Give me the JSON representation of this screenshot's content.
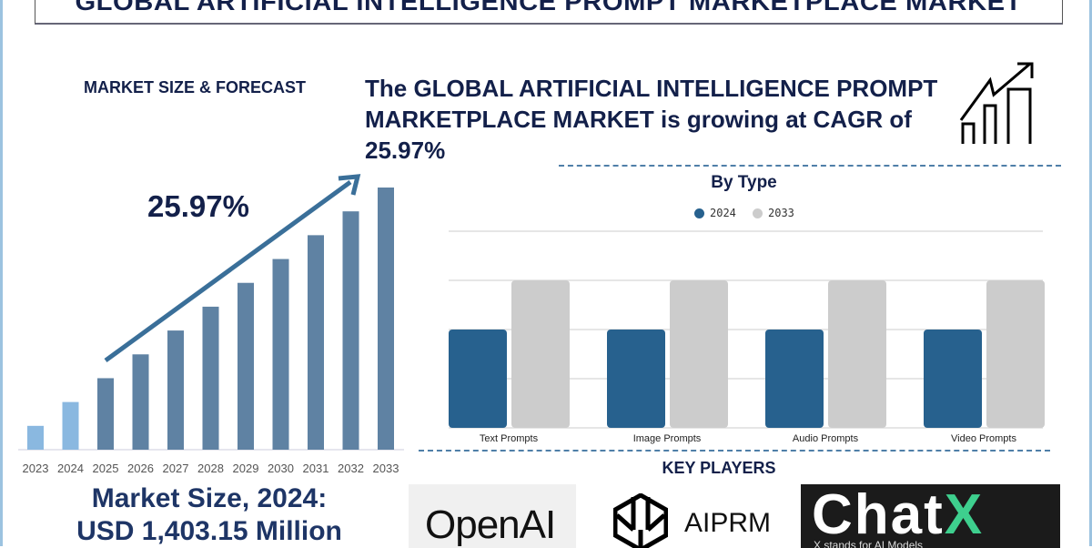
{
  "header": {
    "title": "GLOBAL ARTIFICIAL INTELLIGENCE PROMPT MARKETPLACE MARKET"
  },
  "section_label": "MARKET SIZE & FORECAST",
  "headline": "The GLOBAL ARTIFICIAL INTELLIGENCE PROMPT MARKETPLACE MARKET is growing at CAGR of 25.97%",
  "cagr_label": "25.97%",
  "market_size": {
    "line1": "Market Size, 2024:",
    "line2": "USD 1,403.15 Million"
  },
  "key_players": {
    "title": "KEY PLAYERS",
    "logos": [
      "OpenAI",
      "AIPRM",
      "ChatX",
      "X stands for AI Models"
    ]
  },
  "colors": {
    "navy": "#13204a",
    "forecast_bar": "#5f82a3",
    "historic_bar": "#8ab8e0",
    "series_2024": "#27618e",
    "series_2033": "#cccccc",
    "arrow": "#3a6f99"
  },
  "chart_data": [
    {
      "type": "bar",
      "title": "",
      "categories": [
        "2023",
        "2024",
        "2025",
        "2026",
        "2027",
        "2028",
        "2029",
        "2030",
        "2031",
        "2032",
        "2033"
      ],
      "values": [
        1,
        2,
        3,
        4,
        5,
        6,
        7,
        8,
        9,
        10,
        11
      ],
      "historic_categories": [
        "2023",
        "2024"
      ],
      "grid": false,
      "annotation": "25.97%"
    },
    {
      "type": "bar",
      "title": "By Type",
      "categories": [
        "Text Prompts",
        "Image Prompts",
        "Audio Prompts",
        "Video Prompts"
      ],
      "series": [
        {
          "name": "2024",
          "values": [
            2,
            2,
            2,
            2
          ]
        },
        {
          "name": "2033",
          "values": [
            3,
            3,
            3,
            3
          ]
        }
      ],
      "ylim": [
        0,
        4
      ],
      "grid": true,
      "legend": "top-center"
    }
  ]
}
